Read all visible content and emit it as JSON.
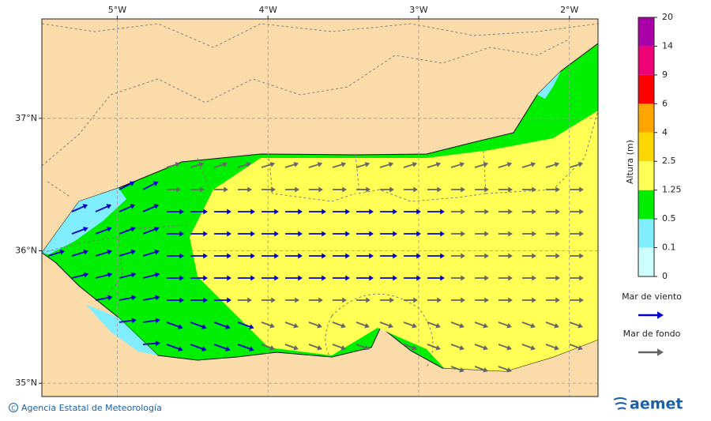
{
  "map": {
    "xlim": [
      -5.5,
      -1.81
    ],
    "ylim": [
      34.9,
      37.75
    ],
    "xticks": [
      {
        "value": -5,
        "label": "5°W"
      },
      {
        "value": -4,
        "label": "4°W"
      },
      {
        "value": -3,
        "label": "3°W"
      },
      {
        "value": -2,
        "label": "2°W"
      }
    ],
    "yticks": [
      {
        "value": 37,
        "label": "37°N"
      },
      {
        "value": 36,
        "label": "36°N"
      },
      {
        "value": 35,
        "label": "35°N"
      }
    ]
  },
  "colorbar": {
    "title": "Altura (m)",
    "levels": [
      0,
      0.1,
      0.5,
      1.25,
      2.5,
      4,
      6,
      9,
      14,
      20
    ],
    "colors": [
      "#ccffff",
      "#80eeff",
      "#00ee00",
      "#ffff55",
      "#ffd700",
      "#ffa500",
      "#ff0000",
      "#ee0077",
      "#aa00aa"
    ]
  },
  "legend": [
    {
      "name": "Mar de viento",
      "color": "#0000cc"
    },
    {
      "name": "Mar de fondo",
      "color": "#666666"
    }
  ],
  "footer": {
    "copyright": "Agencia Estatal de Meteorología",
    "logo": "aemet"
  }
}
